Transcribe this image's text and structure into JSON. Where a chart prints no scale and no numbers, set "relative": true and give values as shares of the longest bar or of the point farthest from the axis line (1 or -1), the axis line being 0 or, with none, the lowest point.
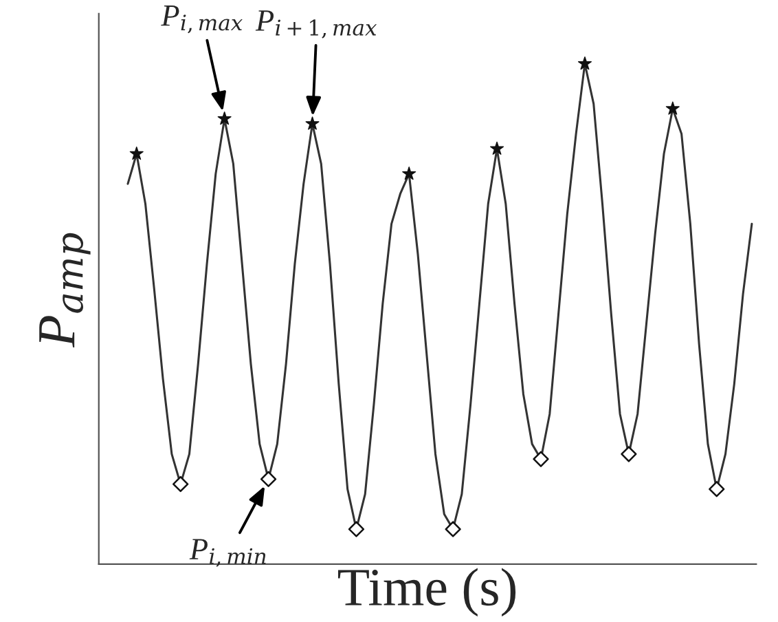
{
  "chart_data": {
    "type": "line",
    "relative": true,
    "xlabel": "Time (s)",
    "ylabel": "P$_{amp}$",
    "legend": false,
    "categories": [
      null,
      null,
      null,
      null,
      null,
      null,
      null,
      null,
      null,
      null,
      null,
      null,
      null,
      null,
      null,
      null,
      null,
      null,
      null,
      null,
      null,
      null,
      null,
      null,
      null,
      null,
      null,
      null,
      null,
      null,
      null,
      null,
      null,
      null,
      null,
      null,
      null,
      null,
      null,
      null,
      null,
      null,
      null,
      null,
      null,
      null,
      null,
      null,
      null,
      null,
      null,
      null,
      null,
      null,
      null,
      null,
      null,
      null,
      null,
      null,
      null,
      null,
      null,
      null,
      null,
      null,
      null,
      null,
      null,
      null,
      null,
      null
    ],
    "series": [
      {
        "color": "#333333",
        "line_style": "solid",
        "values": [
          0.76,
          0.82,
          0.72,
          0.55,
          0.37,
          0.22,
          0.16,
          0.22,
          0.4,
          0.6,
          0.78,
          0.89,
          0.8,
          0.6,
          0.4,
          0.24,
          0.17,
          0.24,
          0.4,
          0.6,
          0.76,
          0.88,
          0.8,
          0.6,
          0.36,
          0.15,
          0.07,
          0.14,
          0.32,
          0.52,
          0.68,
          0.74,
          0.78,
          0.62,
          0.42,
          0.22,
          0.1,
          0.07,
          0.14,
          0.32,
          0.52,
          0.72,
          0.83,
          0.72,
          0.52,
          0.34,
          0.24,
          0.21,
          0.3,
          0.5,
          0.7,
          0.86,
          1.0,
          0.92,
          0.72,
          0.5,
          0.3,
          0.22,
          0.3,
          0.48,
          0.66,
          0.82,
          0.91,
          0.86,
          0.68,
          0.44,
          0.24,
          0.15,
          0.22,
          0.36,
          0.54,
          0.68
        ]
      }
    ],
    "annotations": [
      "P$_{i,max}$",
      "P$_{i+1,max}$",
      "P$_{i,min}$"
    ]
  }
}
